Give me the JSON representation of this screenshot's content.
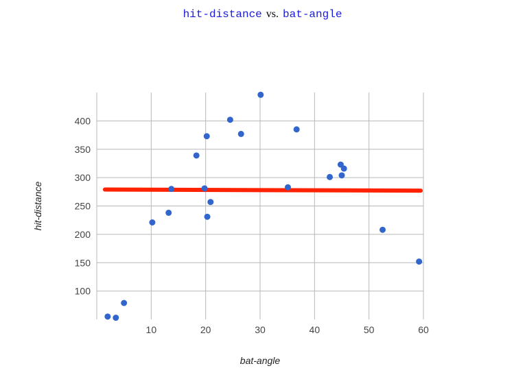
{
  "title": {
    "ycode": "hit-distance",
    "vs": "vs.",
    "xcode": "bat-angle"
  },
  "chart_data": {
    "type": "scatter",
    "xlabel": "bat-angle",
    "ylabel": "hit-distance",
    "xlim": [
      0,
      60
    ],
    "ylim": [
      50,
      450
    ],
    "xticks": [
      10,
      20,
      30,
      40,
      50,
      60
    ],
    "yticks": [
      100,
      150,
      200,
      250,
      300,
      350,
      400
    ],
    "grid": true,
    "point_color": "#3366cc",
    "trend_color": "#ff2200",
    "points": [
      {
        "x": 2,
        "y": 55
      },
      {
        "x": 3.5,
        "y": 53
      },
      {
        "x": 5,
        "y": 79
      },
      {
        "x": 10.2,
        "y": 221
      },
      {
        "x": 13.2,
        "y": 238
      },
      {
        "x": 13.7,
        "y": 280
      },
      {
        "x": 18.3,
        "y": 339
      },
      {
        "x": 19.8,
        "y": 281
      },
      {
        "x": 20.2,
        "y": 373
      },
      {
        "x": 20.3,
        "y": 231
      },
      {
        "x": 20.9,
        "y": 257
      },
      {
        "x": 24.5,
        "y": 402
      },
      {
        "x": 26.5,
        "y": 377
      },
      {
        "x": 30.1,
        "y": 446
      },
      {
        "x": 35.1,
        "y": 283
      },
      {
        "x": 36.7,
        "y": 385
      },
      {
        "x": 42.8,
        "y": 301
      },
      {
        "x": 44.8,
        "y": 323
      },
      {
        "x": 45.0,
        "y": 304
      },
      {
        "x": 45.4,
        "y": 316
      },
      {
        "x": 52.5,
        "y": 208
      },
      {
        "x": 59.2,
        "y": 152
      }
    ],
    "trendline": {
      "x": [
        1.5,
        59.5
      ],
      "y": [
        279,
        277
      ]
    }
  }
}
